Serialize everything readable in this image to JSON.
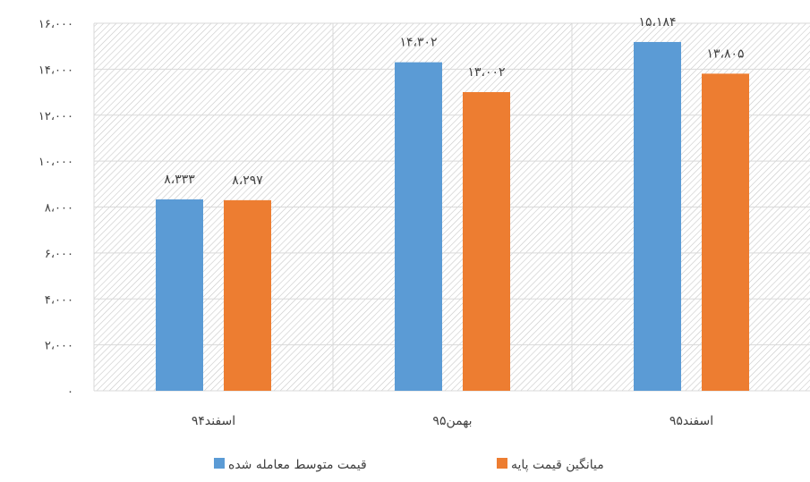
{
  "chart_data": {
    "type": "bar",
    "categories": [
      "اسفند۹۴",
      "بهمن۹۵",
      "اسفند۹۵"
    ],
    "series": [
      {
        "name": "قیمت متوسط معامله شده",
        "color": "#5b9bd5",
        "values": [
          8333,
          14302,
          15184
        ],
        "labels": [
          "۸،۳۳۳",
          "۱۴،۳۰۲",
          "۱۵،۱۸۴"
        ]
      },
      {
        "name": "میانگین قیمت پایه",
        "color": "#ed7d31",
        "values": [
          8297,
          13002,
          13805
        ],
        "labels": [
          "۸،۲۹۷",
          "۱۳،۰۰۲",
          "۱۳،۸۰۵"
        ]
      }
    ],
    "ylim": [
      0,
      16000
    ],
    "yticks": [
      0,
      2000,
      4000,
      6000,
      8000,
      10000,
      12000,
      14000,
      16000
    ],
    "ytick_labels": [
      "۰",
      "۲،۰۰۰",
      "۴،۰۰۰",
      "۶،۰۰۰",
      "۸،۰۰۰",
      "۱۰،۰۰۰",
      "۱۲،۰۰۰",
      "۱۴،۰۰۰",
      "۱۶،۰۰۰"
    ],
    "grid": true,
    "legend": "bottom"
  }
}
